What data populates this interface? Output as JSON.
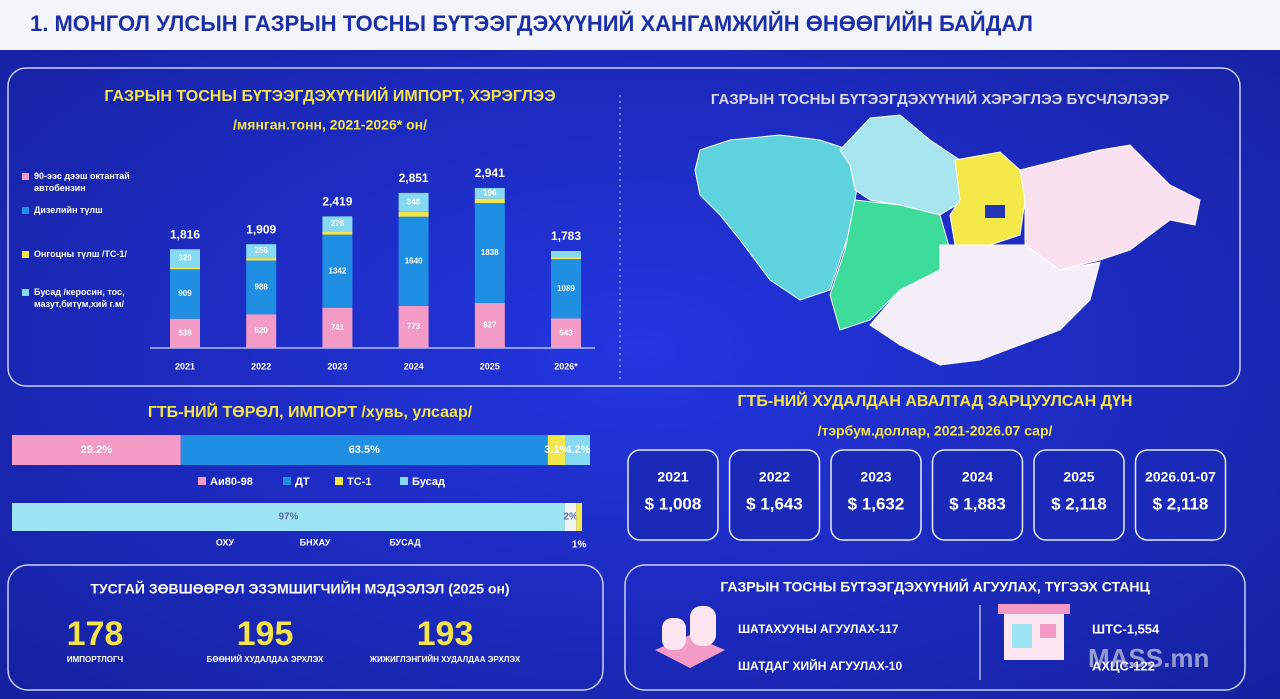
{
  "title": "1. МОНГОЛ УЛСЫН ГАЗРЫН ТОСНЫ БҮТЭЭГДЭХҮҮНИЙ ХАНГАМЖИЙН ӨНӨӨГИЙН БАЙДАЛ",
  "chart_data": [
    {
      "type": "bar",
      "title": "ГАЗРЫН ТОСНЫ БҮТЭЭГДЭХҮҮНИЙ ИМПОРТ, ХЭРЭГЛЭЭ",
      "subtitle": "/мянган.тонн, 2021-2026* он/",
      "categories": [
        "2021",
        "2022",
        "2023",
        "2024",
        "2025",
        "2026*"
      ],
      "series": [
        {
          "name": "90-ээс дээш октантай автобензин",
          "color": "#f49ac6",
          "values": [
            538,
            620,
            741,
            773,
            827,
            543
          ]
        },
        {
          "name": "Дизелийн түлш",
          "color": "#1f8fe3",
          "values": [
            909,
            988,
            1342,
            1640,
            1838,
            1089
          ]
        },
        {
          "name": "Онгоцны түлш /ТС-1/",
          "color": "#f2e64b",
          "values": [
            40,
            45,
            60,
            90,
            80,
            40
          ]
        },
        {
          "name": "Бусад /керосин, тос, мазут,битүм,хий г.м/",
          "color": "#86d9f2",
          "values": [
            329,
            256,
            276,
            348,
            196,
            111
          ]
        }
      ],
      "totals": [
        1816,
        1909,
        2419,
        2851,
        2941,
        1783
      ],
      "total_labels": [
        "1,816",
        "1,909",
        "2,419",
        "2,851",
        "2,941",
        "1,783"
      ]
    },
    {
      "type": "hbar",
      "title": "ГТБ-НИЙ ТӨРӨЛ, ИМПОРТ /хувь, улсаар/",
      "series": [
        {
          "name": "Аи80-98",
          "color": "#f49ac6",
          "values": [
            29.2
          ],
          "value_labels": [
            "29.2%"
          ]
        },
        {
          "name": "ДТ",
          "color": "#1f8fe3",
          "values": [
            63.5
          ],
          "value_labels": [
            "63.5%"
          ]
        },
        {
          "name": "ТС-1",
          "color": "#f2e64b",
          "values": [
            3.1
          ],
          "value_labels": [
            "3.1%"
          ]
        },
        {
          "name": "Бусад",
          "color": "#86d9f2",
          "values": [
            4.2
          ],
          "value_labels": [
            "4.2%"
          ]
        }
      ]
    },
    {
      "type": "hbar",
      "series": [
        {
          "name": "ОХУ",
          "color": "#9ee4f4",
          "values": [
            97
          ],
          "value_labels": [
            "97%"
          ]
        },
        {
          "name": "БНХАУ",
          "color": "#f4f4f4",
          "values": [
            2
          ],
          "value_labels": [
            "2%"
          ]
        },
        {
          "name": "БУСАД",
          "color": "#f2e64b",
          "values": [
            1
          ],
          "value_labels": [
            "1%"
          ]
        }
      ]
    }
  ],
  "map": {
    "title": "ГАЗРЫН ТОСНЫ БҮТЭЭГДЭХҮҮНИЙ ХЭРЭГЛЭЭ БҮСЧЛЭЛЭЭР"
  },
  "spending": {
    "title": "ГТБ-НИЙ ХУДАЛДАН АВАЛТАД ЗАРЦУУЛСАН ДҮН",
    "subtitle": "/тэрбум.доллар, 2021-2026.07 сар/",
    "items": [
      {
        "year": "2021",
        "amount": "$ 1,008"
      },
      {
        "year": "2022",
        "amount": "$ 1,643"
      },
      {
        "year": "2023",
        "amount": "$ 1,632"
      },
      {
        "year": "2024",
        "amount": "$ 1,883"
      },
      {
        "year": "2025",
        "amount": "$ 2,118"
      },
      {
        "year": "2026.01-07",
        "amount": "$ 2,118"
      }
    ]
  },
  "licenses": {
    "title": "ТУСГАЙ ЗӨВШӨӨРӨЛ ЭЗЭМШИГЧИЙН МЭДЭЭЛЭЛ (2025 он)",
    "items": [
      {
        "number": "178",
        "label": "ИМПОРТЛОГЧ"
      },
      {
        "number": "195",
        "label": "БӨӨНИЙ ХУДАЛДАА ЭРХЛЭХ"
      },
      {
        "number": "193",
        "label": "ЖИЖИГЛЭНГИЙН ХУДАЛДАА ЭРХЛЭХ"
      }
    ]
  },
  "storage": {
    "title": "ГАЗРЫН ТОСНЫ БҮТЭЭГДЭХҮҮНИЙ АГУУЛАХ, ТҮГЭЭХ СТАНЦ",
    "depots": [
      "ШАТАХУУНЫ АГУУЛАХ-117",
      "ШАТДАГ ХИЙН АГУУЛАХ-10"
    ],
    "stations": [
      "ШТС-1,554",
      "АХЦС-122"
    ]
  },
  "watermark": "MASS.mn"
}
